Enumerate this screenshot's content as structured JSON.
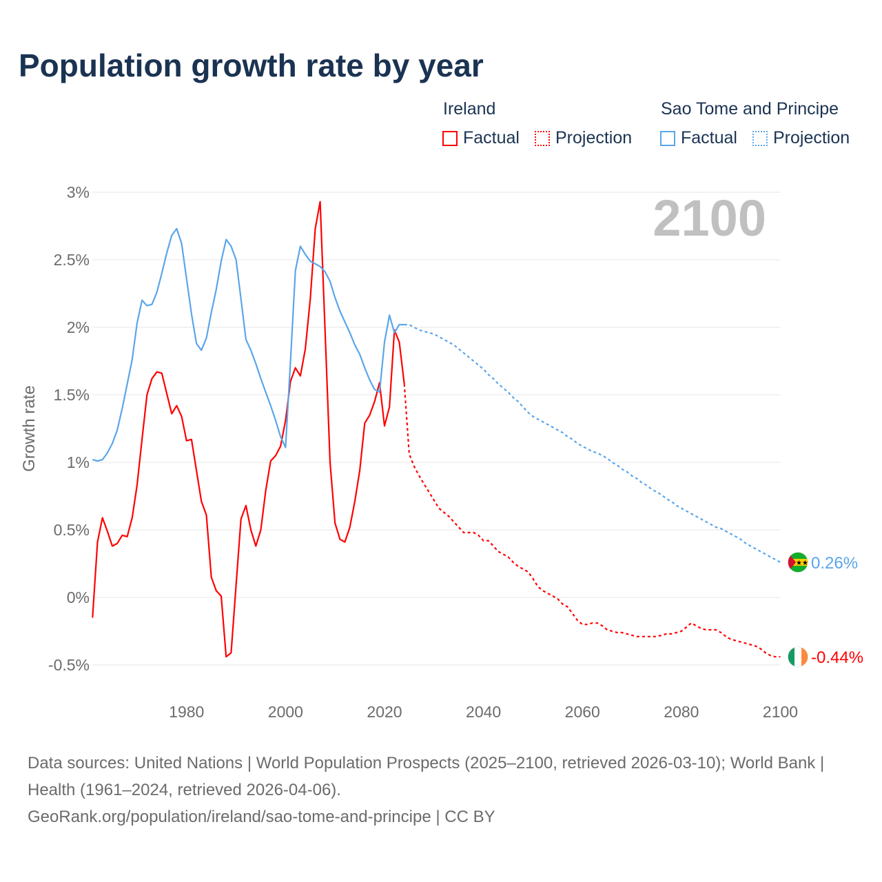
{
  "title": "Population growth rate by year",
  "legend": {
    "groups": [
      {
        "name": "Ireland",
        "color": "#ff0000",
        "factual": "Factual",
        "projection": "Projection"
      },
      {
        "name": "Sao Tome and Principe",
        "color": "#5aa5ea",
        "factual": "Factual",
        "projection": "Projection"
      }
    ]
  },
  "year_label": "2100",
  "footer": {
    "sources": "Data sources: United Nations | World Population Prospects (2025–2100, retrieved 2026-03-10); World Bank | Health (1961–2024, retrieved 2026-04-06).",
    "link": "GeoRank.org/population/ireland/sao-tome-and-principe | CC BY"
  },
  "chart_data": {
    "type": "line",
    "title": "Population growth rate by year",
    "xlabel": "",
    "ylabel": "Growth rate",
    "xlim": [
      1961,
      2100
    ],
    "ylim": [
      -0.5,
      3
    ],
    "x_ticks": [
      "1980",
      "2000",
      "2020",
      "2040",
      "2060",
      "2080",
      "2100"
    ],
    "y_ticks": [
      "3%",
      "2.5%",
      "2%",
      "1.5%",
      "1%",
      "0.5%",
      "0%",
      "-0.5%"
    ],
    "y_tick_values": [
      3,
      2.5,
      2,
      1.5,
      1,
      0.5,
      0,
      -0.5
    ],
    "grid": true,
    "legend_position": "top-right",
    "series": [
      {
        "name": "Ireland",
        "color": "#ff0000",
        "end_label": "-0.44%",
        "factual_start": 1961,
        "factual": [
          -0.15,
          0.41,
          0.59,
          0.49,
          0.38,
          0.4,
          0.46,
          0.45,
          0.59,
          0.83,
          1.17,
          1.5,
          1.62,
          1.67,
          1.66,
          1.51,
          1.36,
          1.42,
          1.34,
          1.16,
          1.17,
          0.94,
          0.71,
          0.61,
          0.15,
          0.05,
          0.01,
          -0.44,
          -0.41,
          0.09,
          0.58,
          0.68,
          0.5,
          0.38,
          0.5,
          0.79,
          1.01,
          1.05,
          1.12,
          1.31,
          1.6,
          1.7,
          1.64,
          1.84,
          2.21,
          2.73,
          2.93,
          1.97,
          1.0,
          0.55,
          0.43,
          0.41,
          0.52,
          0.71,
          0.94,
          1.29,
          1.35,
          1.45,
          1.59,
          1.27,
          1.41,
          1.98,
          1.89,
          1.58
        ],
        "projection_start": 2025,
        "projection": [
          1.06,
          0.97,
          0.9,
          0.84,
          0.78,
          0.72,
          0.66,
          0.63,
          0.6,
          0.56,
          0.52,
          0.48,
          0.48,
          0.48,
          0.46,
          0.42,
          0.42,
          0.38,
          0.34,
          0.32,
          0.3,
          0.26,
          0.23,
          0.21,
          0.19,
          0.14,
          0.08,
          0.05,
          0.03,
          0.01,
          -0.01,
          -0.05,
          -0.07,
          -0.12,
          -0.17,
          -0.2,
          -0.2,
          -0.19,
          -0.19,
          -0.21,
          -0.24,
          -0.25,
          -0.26,
          -0.26,
          -0.27,
          -0.28,
          -0.29,
          -0.29,
          -0.29,
          -0.29,
          -0.29,
          -0.28,
          -0.27,
          -0.27,
          -0.26,
          -0.25,
          -0.22,
          -0.19,
          -0.21,
          -0.23,
          -0.24,
          -0.24,
          -0.24,
          -0.26,
          -0.29,
          -0.31,
          -0.32,
          -0.33,
          -0.34,
          -0.35,
          -0.36,
          -0.38,
          -0.41,
          -0.43,
          -0.44,
          -0.44
        ]
      },
      {
        "name": "Sao Tome and Principe",
        "color": "#5aa5ea",
        "end_label": "0.26%",
        "factual_start": 1961,
        "factual": [
          1.02,
          1.01,
          1.02,
          1.07,
          1.14,
          1.24,
          1.4,
          1.58,
          1.76,
          2.03,
          2.2,
          2.16,
          2.17,
          2.26,
          2.4,
          2.55,
          2.68,
          2.73,
          2.62,
          2.36,
          2.1,
          1.88,
          1.83,
          1.92,
          2.11,
          2.28,
          2.49,
          2.65,
          2.6,
          2.5,
          2.21,
          1.91,
          1.83,
          1.73,
          1.62,
          1.52,
          1.42,
          1.31,
          1.19,
          1.11,
          1.75,
          2.42,
          2.6,
          2.54,
          2.49,
          2.47,
          2.45,
          2.41,
          2.34,
          2.22,
          2.12,
          2.04,
          1.96,
          1.87,
          1.8,
          1.7,
          1.61,
          1.54,
          1.52,
          1.89,
          2.09,
          1.96,
          2.02,
          2.02
        ],
        "projection_start": 2025,
        "projection": [
          2.02,
          2.0,
          1.98,
          1.97,
          1.96,
          1.95,
          1.93,
          1.91,
          1.89,
          1.87,
          1.84,
          1.81,
          1.78,
          1.75,
          1.72,
          1.69,
          1.65,
          1.62,
          1.58,
          1.55,
          1.52,
          1.48,
          1.45,
          1.41,
          1.37,
          1.34,
          1.32,
          1.3,
          1.28,
          1.26,
          1.24,
          1.22,
          1.19,
          1.17,
          1.14,
          1.12,
          1.1,
          1.08,
          1.07,
          1.05,
          1.03,
          1.0,
          0.98,
          0.95,
          0.93,
          0.9,
          0.88,
          0.85,
          0.83,
          0.8,
          0.78,
          0.76,
          0.73,
          0.71,
          0.68,
          0.66,
          0.64,
          0.62,
          0.6,
          0.58,
          0.56,
          0.54,
          0.52,
          0.51,
          0.49,
          0.47,
          0.45,
          0.43,
          0.4,
          0.38,
          0.36,
          0.34,
          0.32,
          0.3,
          0.28,
          0.26
        ]
      }
    ]
  }
}
